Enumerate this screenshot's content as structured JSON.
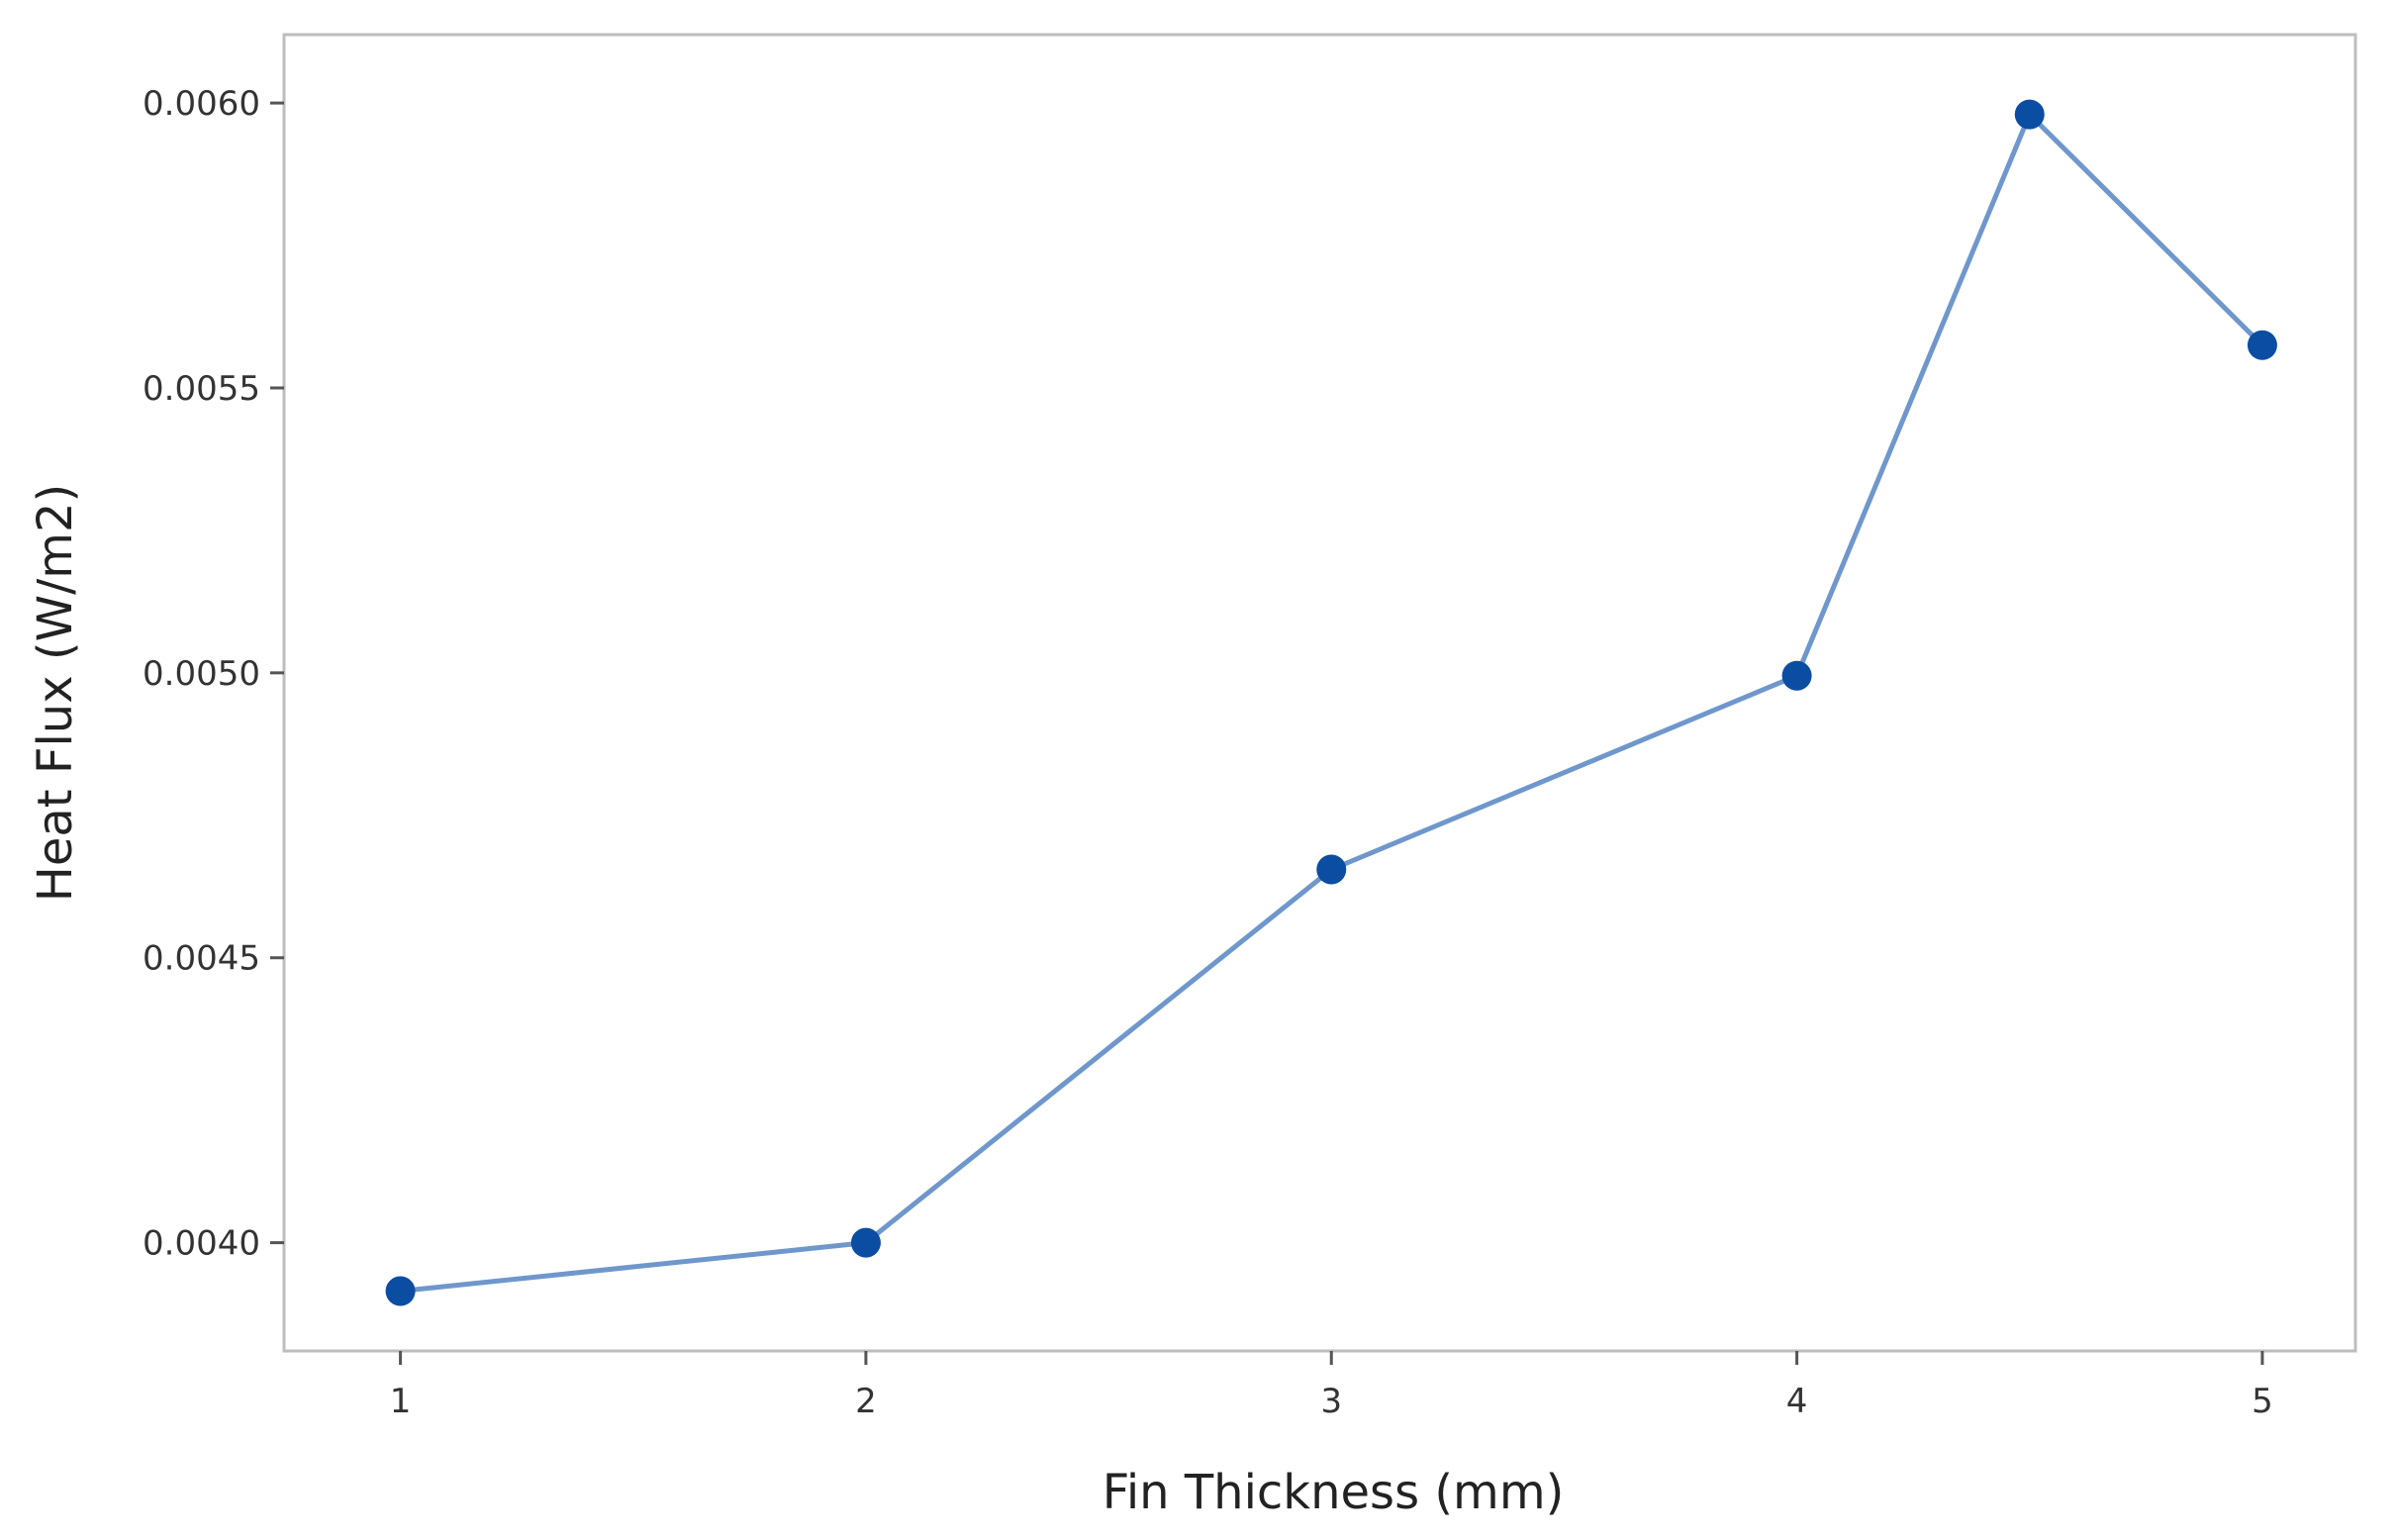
{
  "chart_data": {
    "type": "line",
    "xlabel": "Fin Thickness (mm)",
    "ylabel": "Heat Flux (W/m2)",
    "xlim": [
      0.75,
      5.2
    ],
    "ylim": [
      0.00381,
      0.00612
    ],
    "xticks": [
      1,
      2,
      3,
      4,
      5
    ],
    "xtick_labels": [
      "1",
      "2",
      "3",
      "4",
      "5"
    ],
    "yticks": [
      0.004,
      0.0045,
      0.005,
      0.0055,
      0.006
    ],
    "ytick_labels": [
      "0.0040",
      "0.0045",
      "0.0050",
      "0.0055",
      "0.0060"
    ],
    "grid": false,
    "legend": "none",
    "series": [
      {
        "color": "#0b4da2",
        "line_color": "#6f97cc",
        "x": [
          1,
          2,
          3,
          4,
          4.5,
          5
        ],
        "y": [
          0.003915,
          0.004,
          0.004655,
          0.004995,
          0.00598,
          0.005575
        ]
      }
    ]
  }
}
